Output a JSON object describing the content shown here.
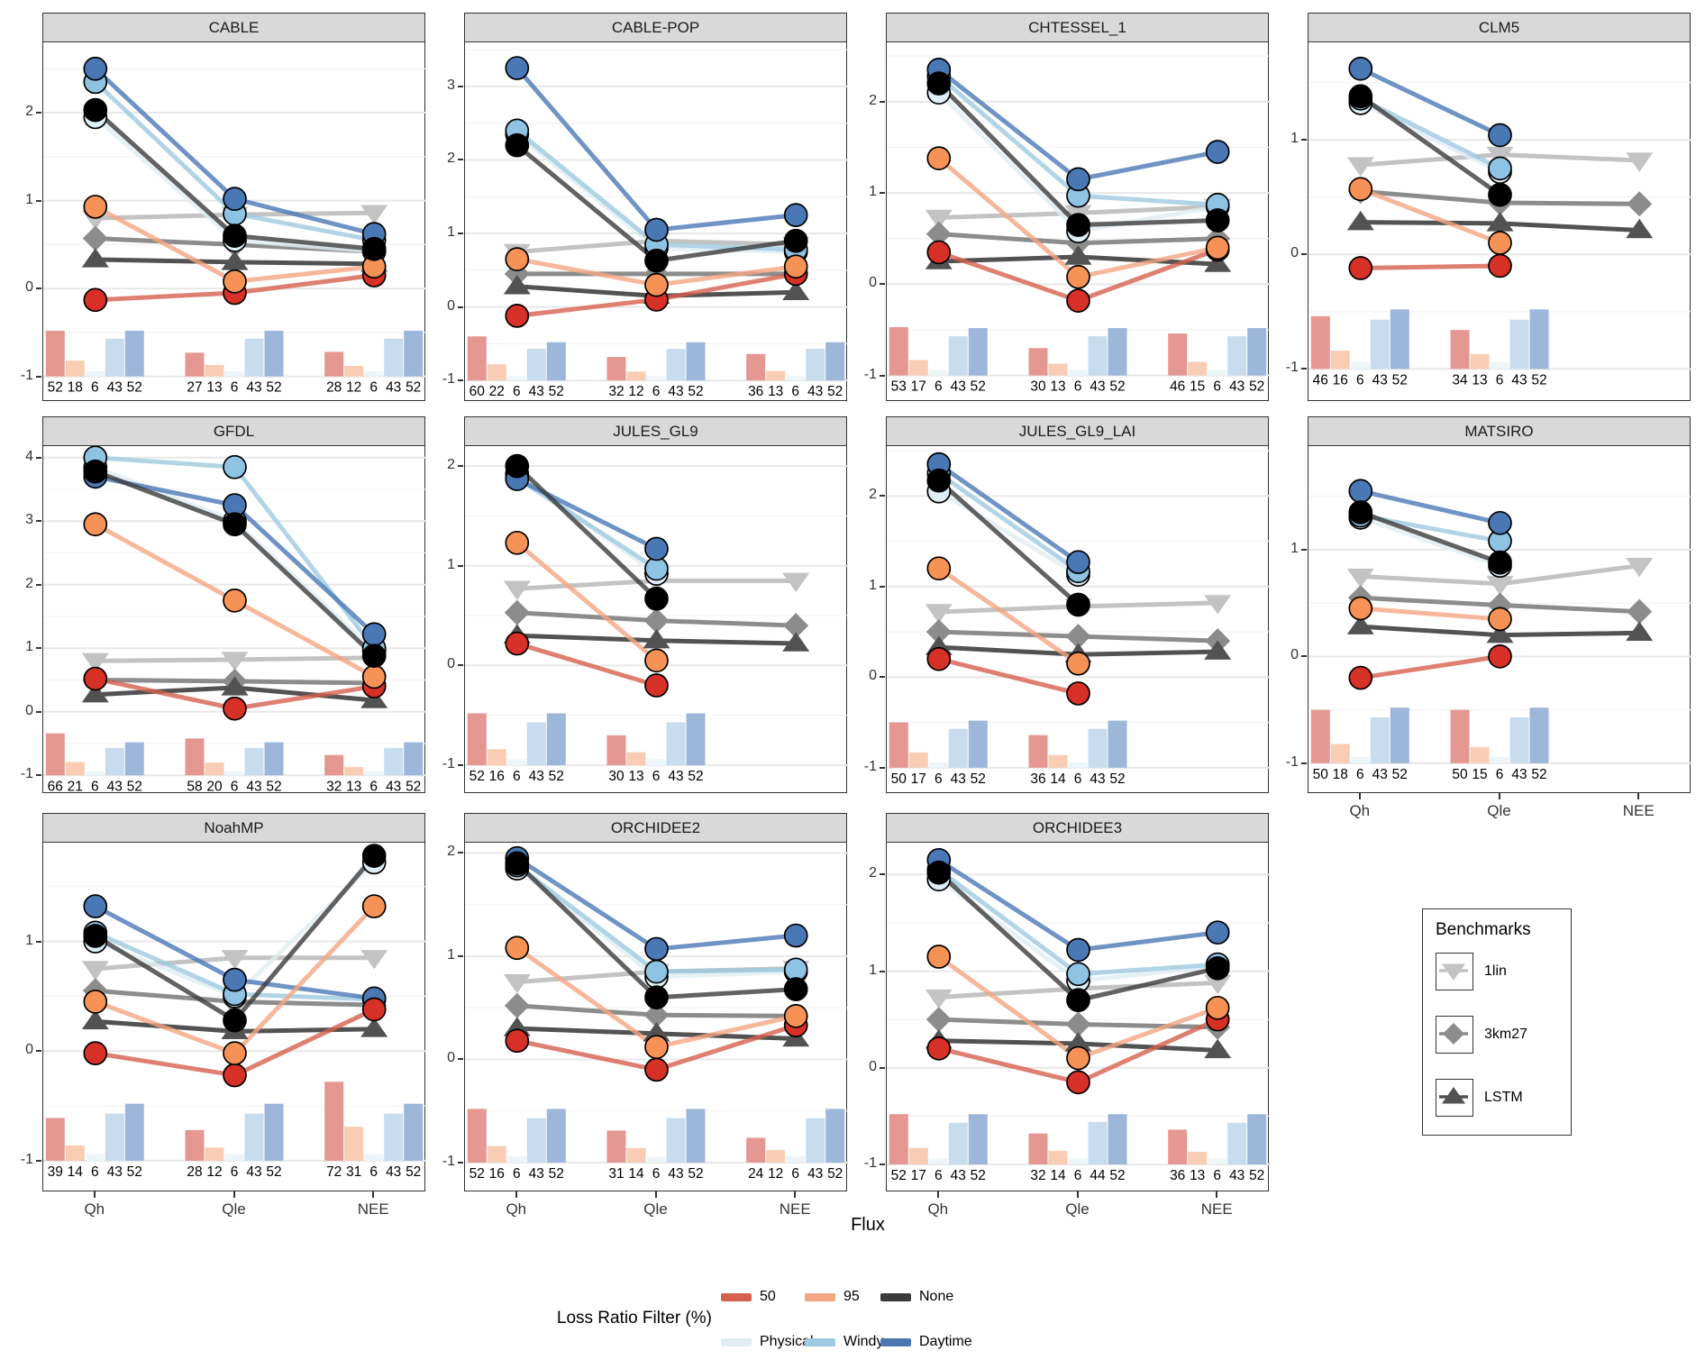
{
  "chart_data": {
    "type": "line",
    "title": "",
    "xlabel": "Flux",
    "x_categories": [
      "Qh",
      "Qle",
      "NEE"
    ],
    "bar_series_order": [
      "50",
      "95",
      "Physical",
      "Windy",
      "Daytime"
    ],
    "colors": {
      "point_50": "#d73027",
      "point_95": "#f79257",
      "point_none": "#000000",
      "point_physical": "#ddeef6",
      "point_windy": "#8fc3e4",
      "point_daytime": "#4a78b5",
      "line_50": "#d6604d",
      "line_95": "#f4a582",
      "line_none": "#3b3b3b",
      "line_physical": "#e0eef4",
      "line_windy": "#9ecae1",
      "line_daytime": "#4a78b5",
      "benchmark_1lin": "#c3c3c3",
      "benchmark_3km27": "#8c8c8c",
      "benchmark_lstm": "#525252",
      "bar_50": "#e59792",
      "bar_95": "#f8cdb3",
      "bar_physical": "#ecf6fa",
      "bar_windy": "#c7dcee",
      "bar_daytime": "#9db7da",
      "panel_header_bg": "#d9d9d9"
    },
    "legends": {
      "benchmarks": {
        "title": "Benchmarks",
        "items": [
          {
            "label": "1lin",
            "shape": "triangle-down",
            "color": "#c3c3c3"
          },
          {
            "label": "3km27",
            "shape": "diamond",
            "color": "#8c8c8c"
          },
          {
            "label": "LSTM",
            "shape": "triangle-up",
            "color": "#525252"
          }
        ]
      },
      "loss_ratio": {
        "title": "Loss Ratio Filter (%)",
        "rows": [
          [
            {
              "label": "50",
              "color": "#d6604d"
            },
            {
              "label": "95",
              "color": "#f4a582"
            },
            {
              "label": "None",
              "color": "#3b3b3b"
            }
          ],
          [
            {
              "label": "Physical",
              "color": "#e0eef4"
            },
            {
              "label": "Windy",
              "color": "#9ecae1"
            },
            {
              "label": "Daytime",
              "color": "#4a78b5"
            }
          ]
        ]
      }
    },
    "facets": [
      {
        "title": "CABLE",
        "ymax": 2.8,
        "yticks": [
          2,
          1,
          0,
          -1
        ],
        "series": {
          "onelin": [
            0.8,
            0.84,
            0.86
          ],
          "km27": [
            0.57,
            0.5,
            0.42
          ],
          "lstm": [
            0.33,
            0.3,
            0.28
          ],
          "physical": [
            1.95,
            0.55,
            0.42
          ],
          "windy": [
            2.35,
            0.85,
            0.55
          ],
          "daytime": [
            2.5,
            1.02,
            0.62
          ],
          "f50": [
            -0.13,
            -0.05,
            0.15
          ],
          "f95": [
            0.93,
            0.08,
            0.25
          ],
          "none": [
            2.03,
            0.6,
            0.45
          ]
        },
        "counts": [
          [
            52,
            18,
            6,
            43,
            52
          ],
          [
            27,
            13,
            6,
            43,
            52
          ],
          [
            28,
            12,
            6,
            43,
            52
          ]
        ]
      },
      {
        "title": "CABLE-POP",
        "ymax": 3.6,
        "yticks": [
          3,
          2,
          1,
          0,
          -1
        ],
        "series": {
          "onelin": [
            0.75,
            0.9,
            0.85
          ],
          "km27": [
            0.45,
            0.45,
            0.45
          ],
          "lstm": [
            0.28,
            0.15,
            0.2
          ],
          "physical": [
            2.35,
            0.8,
            0.75
          ],
          "windy": [
            2.4,
            0.85,
            0.78
          ],
          "daytime": [
            3.25,
            1.05,
            1.25
          ],
          "f50": [
            -0.12,
            0.1,
            0.45
          ],
          "f95": [
            0.65,
            0.3,
            0.55
          ],
          "none": [
            2.2,
            0.63,
            0.9
          ]
        },
        "counts": [
          [
            60,
            22,
            6,
            43,
            52
          ],
          [
            32,
            12,
            6,
            43,
            52
          ],
          [
            36,
            13,
            6,
            43,
            52
          ]
        ]
      },
      {
        "title": "CHTESSEL_1",
        "ymax": 2.65,
        "yticks": [
          2,
          1,
          0,
          -1
        ],
        "series": {
          "onelin": [
            0.73,
            0.78,
            0.85
          ],
          "km27": [
            0.55,
            0.45,
            0.5
          ],
          "lstm": [
            0.25,
            0.3,
            0.22
          ],
          "physical": [
            2.1,
            0.58,
            0.85
          ],
          "windy": [
            2.28,
            0.97,
            0.87
          ],
          "daytime": [
            2.35,
            1.15,
            1.45
          ],
          "f50": [
            0.35,
            -0.18,
            0.38
          ],
          "f95": [
            1.38,
            0.08,
            0.4
          ],
          "none": [
            2.2,
            0.65,
            0.7
          ]
        },
        "counts": [
          [
            53,
            17,
            6,
            43,
            52
          ],
          [
            30,
            13,
            6,
            43,
            52
          ],
          [
            46,
            15,
            6,
            43,
            52
          ]
        ]
      },
      {
        "title": "CLM5",
        "ymax": 1.85,
        "yticks": [
          1,
          0,
          -1
        ],
        "series": {
          "onelin": [
            0.78,
            0.87,
            0.82
          ],
          "km27": [
            0.55,
            0.45,
            0.44
          ],
          "lstm": [
            0.28,
            0.27,
            0.21
          ],
          "physical": [
            1.32,
            0.72,
            null
          ],
          "windy": [
            1.36,
            0.75,
            null
          ],
          "daytime": [
            1.62,
            1.04,
            null
          ],
          "f50": [
            -0.12,
            -0.1,
            null
          ],
          "f95": [
            0.57,
            0.1,
            null
          ],
          "none": [
            1.38,
            0.52,
            null
          ]
        },
        "counts": [
          [
            46,
            16,
            6,
            43,
            52
          ],
          [
            34,
            13,
            6,
            43,
            52
          ],
          null
        ]
      },
      {
        "title": "GFDL",
        "ymax": 4.18,
        "yticks": [
          4,
          3,
          2,
          1,
          0,
          -1
        ],
        "series": {
          "onelin": [
            0.8,
            0.82,
            0.85
          ],
          "km27": [
            0.5,
            0.48,
            0.45
          ],
          "lstm": [
            0.27,
            0.38,
            0.18
          ],
          "physical": [
            3.85,
            3.0,
            0.95
          ],
          "windy": [
            4.0,
            3.85,
            1.0
          ],
          "daytime": [
            3.7,
            3.25,
            1.22
          ],
          "f50": [
            0.52,
            0.05,
            0.4
          ],
          "f95": [
            2.95,
            1.75,
            0.55
          ],
          "none": [
            3.78,
            2.95,
            0.88
          ]
        },
        "counts": [
          [
            66,
            21,
            6,
            43,
            52
          ],
          [
            58,
            20,
            6,
            43,
            52
          ],
          [
            32,
            13,
            6,
            43,
            52
          ]
        ]
      },
      {
        "title": "JULES_GL9",
        "ymax": 2.2,
        "yticks": [
          2,
          1,
          0,
          -1
        ],
        "series": {
          "onelin": [
            0.77,
            0.85,
            0.85
          ],
          "km27": [
            0.53,
            0.45,
            0.4
          ],
          "lstm": [
            0.3,
            0.25,
            0.22
          ],
          "physical": [
            1.92,
            0.92,
            null
          ],
          "windy": [
            1.88,
            0.97,
            null
          ],
          "daytime": [
            1.87,
            1.17,
            null
          ],
          "f50": [
            0.22,
            -0.2,
            null
          ],
          "f95": [
            1.23,
            0.05,
            null
          ],
          "none": [
            2.0,
            0.67,
            null
          ]
        },
        "counts": [
          [
            52,
            16,
            6,
            43,
            52
          ],
          [
            30,
            13,
            6,
            43,
            52
          ],
          null
        ]
      },
      {
        "title": "JULES_GL9_LAI",
        "ymax": 2.55,
        "yticks": [
          2,
          1,
          0,
          -1
        ],
        "series": {
          "onelin": [
            0.72,
            0.78,
            0.82
          ],
          "km27": [
            0.5,
            0.45,
            0.4
          ],
          "lstm": [
            0.33,
            0.25,
            0.28
          ],
          "physical": [
            2.05,
            1.13,
            null
          ],
          "windy": [
            2.25,
            1.17,
            null
          ],
          "daytime": [
            2.35,
            1.27,
            null
          ],
          "f50": [
            0.2,
            -0.18,
            null
          ],
          "f95": [
            1.2,
            0.15,
            null
          ],
          "none": [
            2.17,
            0.8,
            null
          ]
        },
        "counts": [
          [
            50,
            17,
            6,
            43,
            52
          ],
          [
            36,
            14,
            6,
            43,
            52
          ],
          null
        ]
      },
      {
        "title": "MATSIRO",
        "ymax": 1.97,
        "yticks": [
          1,
          0,
          -1
        ],
        "series": {
          "onelin": [
            0.75,
            0.68,
            0.85
          ],
          "km27": [
            0.55,
            0.48,
            0.42
          ],
          "lstm": [
            0.28,
            0.2,
            0.22
          ],
          "physical": [
            1.3,
            0.85,
            null
          ],
          "windy": [
            1.32,
            1.08,
            null
          ],
          "daytime": [
            1.55,
            1.25,
            null
          ],
          "f50": [
            -0.2,
            0.0,
            null
          ],
          "f95": [
            0.45,
            0.35,
            null
          ],
          "none": [
            1.35,
            0.88,
            null
          ]
        },
        "counts": [
          [
            50,
            18,
            6,
            43,
            52
          ],
          [
            50,
            15,
            6,
            43,
            52
          ],
          null
        ]
      },
      {
        "title": "NoahMP",
        "ymax": 1.9,
        "yticks": [
          1,
          0,
          -1
        ],
        "series": {
          "onelin": [
            0.75,
            0.85,
            0.85
          ],
          "km27": [
            0.55,
            0.45,
            0.42
          ],
          "lstm": [
            0.27,
            0.18,
            0.2
          ],
          "physical": [
            1.0,
            0.5,
            1.72
          ],
          "windy": [
            1.08,
            0.52,
            0.47
          ],
          "daytime": [
            1.32,
            0.65,
            0.48
          ],
          "f50": [
            -0.02,
            -0.22,
            0.38
          ],
          "f95": [
            0.45,
            -0.02,
            1.32
          ],
          "none": [
            1.05,
            0.28,
            1.78
          ]
        },
        "counts": [
          [
            39,
            14,
            6,
            43,
            52
          ],
          [
            28,
            12,
            6,
            43,
            52
          ],
          [
            72,
            31,
            6,
            43,
            52
          ]
        ]
      },
      {
        "title": "ORCHIDEE2",
        "ymax": 2.1,
        "yticks": [
          2,
          1,
          0,
          -1
        ],
        "series": {
          "onelin": [
            0.75,
            0.85,
            0.88
          ],
          "km27": [
            0.52,
            0.43,
            0.42
          ],
          "lstm": [
            0.3,
            0.25,
            0.2
          ],
          "physical": [
            1.85,
            0.8,
            0.85
          ],
          "windy": [
            1.88,
            0.85,
            0.87
          ],
          "daytime": [
            1.95,
            1.07,
            1.2
          ],
          "f50": [
            0.18,
            -0.1,
            0.33
          ],
          "f95": [
            1.08,
            0.12,
            0.42
          ],
          "none": [
            1.9,
            0.6,
            0.68
          ]
        },
        "counts": [
          [
            52,
            16,
            6,
            43,
            52
          ],
          [
            31,
            14,
            6,
            43,
            52
          ],
          [
            24,
            12,
            6,
            43,
            52
          ]
        ]
      },
      {
        "title": "ORCHIDEE3",
        "ymax": 2.33,
        "yticks": [
          2,
          1,
          0,
          -1
        ],
        "series": {
          "onelin": [
            0.73,
            0.82,
            0.88
          ],
          "km27": [
            0.5,
            0.45,
            0.42
          ],
          "lstm": [
            0.28,
            0.25,
            0.18
          ],
          "physical": [
            1.95,
            0.9,
            1.05
          ],
          "windy": [
            2.05,
            0.97,
            1.07
          ],
          "daytime": [
            2.15,
            1.22,
            1.4
          ],
          "f50": [
            0.2,
            -0.15,
            0.5
          ],
          "f95": [
            1.15,
            0.1,
            0.62
          ],
          "none": [
            2.02,
            0.7,
            1.03
          ]
        },
        "counts": [
          [
            52,
            17,
            6,
            43,
            52
          ],
          [
            32,
            14,
            6,
            44,
            52
          ],
          [
            36,
            13,
            6,
            43,
            52
          ]
        ]
      }
    ]
  }
}
